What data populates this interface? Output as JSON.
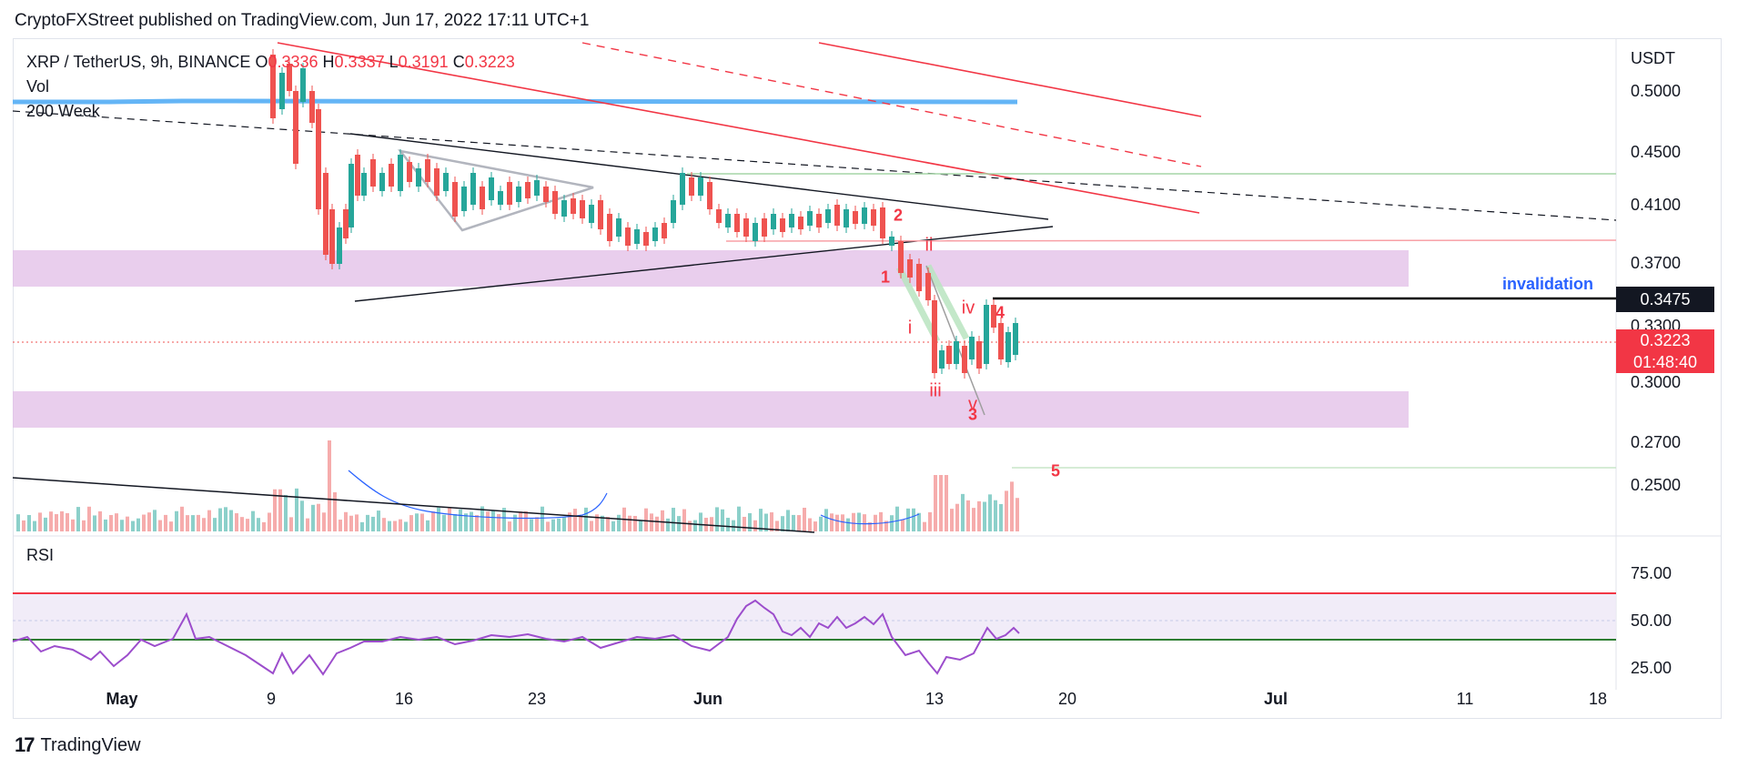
{
  "header": {
    "published_text": "CryptoFXStreet published on TradingView.com, Jun 17, 2022 17:11 UTC+1"
  },
  "legend": {
    "symbol": "XRP / TetherUS, 9h, BINANCE",
    "o_label": "O",
    "o_value": "0.3336",
    "h_label": "H",
    "h_value": "0.3337",
    "l_label": "L",
    "l_value": "0.3191",
    "c_label": "C",
    "c_value": "0.3223",
    "vol_label": "Vol",
    "ma_label": "200 Week"
  },
  "rsi": {
    "label": "RSI"
  },
  "footer": {
    "brand": "TradingView",
    "logo_text": "17"
  },
  "colors": {
    "up": "#26a69a",
    "down": "#ef5350",
    "zone": "#e1bee7",
    "ma": "#64b5f6",
    "rsi": "#9c4dcc",
    "invalidation": "#2962ff"
  },
  "chart_data": [
    {
      "type": "candlestick",
      "yaxis_title": "USDT",
      "y_ticks": [
        "0.5000",
        "0.4500",
        "0.4100",
        "0.3700",
        "0.3300",
        "0.3000",
        "0.2700",
        "0.2500"
      ],
      "x_ticks": [
        "May",
        "9",
        "16",
        "23",
        "Jun",
        "13",
        "20",
        "Jul",
        "11",
        "18"
      ],
      "ylim": [
        0.23,
        0.53
      ],
      "last_price": "0.3223",
      "countdown": "01:48:40",
      "invalidation_label": "invalidation",
      "invalidation_price": "0.3475",
      "wave_labels": [
        "1",
        "2",
        "3",
        "4",
        "5",
        "i",
        "ii",
        "iii",
        "iv",
        "v"
      ],
      "zones": [
        [
          0.352,
          0.373
        ],
        [
          0.282,
          0.304
        ]
      ]
    },
    {
      "type": "line",
      "name": "RSI",
      "y_ticks": [
        "75.00",
        "50.00",
        "25.00"
      ],
      "levels": [
        65,
        40
      ]
    }
  ]
}
